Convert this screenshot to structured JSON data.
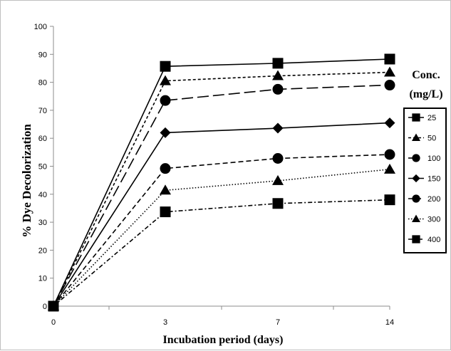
{
  "chart_data": {
    "type": "line",
    "xlabel": "Incubation period (days)",
    "ylabel": "% Dye Decolorization",
    "x_categories": [
      "0",
      "3",
      "7",
      "14"
    ],
    "ylim": [
      0,
      100
    ],
    "y_ticks": [
      "0",
      "10",
      "20",
      "30",
      "40",
      "50",
      "60",
      "70",
      "80",
      "90",
      "100"
    ],
    "grid": false,
    "legend": {
      "title_line1": "Conc.",
      "title_line2": "(mg/L)",
      "placement": "right"
    },
    "series": [
      {
        "name": "25",
        "values": [
          0,
          85.7,
          86.8,
          88.3
        ],
        "marker": "square",
        "dash": "solid"
      },
      {
        "name": "50",
        "values": [
          0,
          80.5,
          82.3,
          83.6
        ],
        "marker": "triangle",
        "dash": "short-dash"
      },
      {
        "name": "100",
        "values": [
          0,
          73.5,
          77.5,
          79.0
        ],
        "marker": "circle",
        "dash": "long-dash"
      },
      {
        "name": "150",
        "values": [
          0,
          62.0,
          63.6,
          65.5
        ],
        "marker": "diamond",
        "dash": "solid"
      },
      {
        "name": "200",
        "values": [
          0,
          49.2,
          52.8,
          54.2
        ],
        "marker": "circle",
        "dash": "dash"
      },
      {
        "name": "300",
        "values": [
          0,
          41.4,
          44.8,
          48.9
        ],
        "marker": "triangle",
        "dash": "dotted"
      },
      {
        "name": "400",
        "values": [
          0,
          33.7,
          36.7,
          38.0
        ],
        "marker": "square",
        "dash": "dash-dot"
      }
    ]
  }
}
